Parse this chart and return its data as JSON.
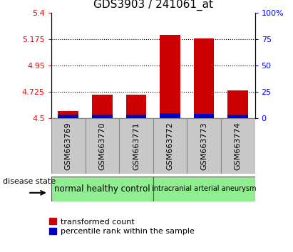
{
  "title": "GDS3903 / 241061_at",
  "samples": [
    "GSM663769",
    "GSM663770",
    "GSM663771",
    "GSM663772",
    "GSM663773",
    "GSM663774"
  ],
  "red_values": [
    4.56,
    4.705,
    4.705,
    5.21,
    5.18,
    4.74
  ],
  "blue_values": [
    4.535,
    4.535,
    4.535,
    4.545,
    4.54,
    4.535
  ],
  "ylim_left": [
    4.5,
    5.4
  ],
  "ylim_right": [
    0,
    100
  ],
  "yticks_left": [
    4.5,
    4.725,
    4.95,
    5.175,
    5.4
  ],
  "yticks_right": [
    0,
    25,
    50,
    75,
    100
  ],
  "ytick_labels_left": [
    "4.5",
    "4.725",
    "4.95",
    "5.175",
    "5.4"
  ],
  "ytick_labels_right": [
    "0",
    "25",
    "50",
    "75",
    "100%"
  ],
  "grid_yticks": [
    4.725,
    4.95,
    5.175
  ],
  "group1_label": "normal healthy control",
  "group2_label": "intracranial arterial aneurysm",
  "disease_state_label": "disease state",
  "legend_red": "transformed count",
  "legend_blue": "percentile rank within the sample",
  "bar_width": 0.6,
  "bar_base": 4.5,
  "group1_color": "#90EE90",
  "group2_color": "#90EE90",
  "group_bg_color": "#c8c8c8",
  "red_color": "#cc0000",
  "blue_color": "#0000cc",
  "title_fontsize": 11,
  "tick_fontsize": 8,
  "label_fontsize": 8.5
}
